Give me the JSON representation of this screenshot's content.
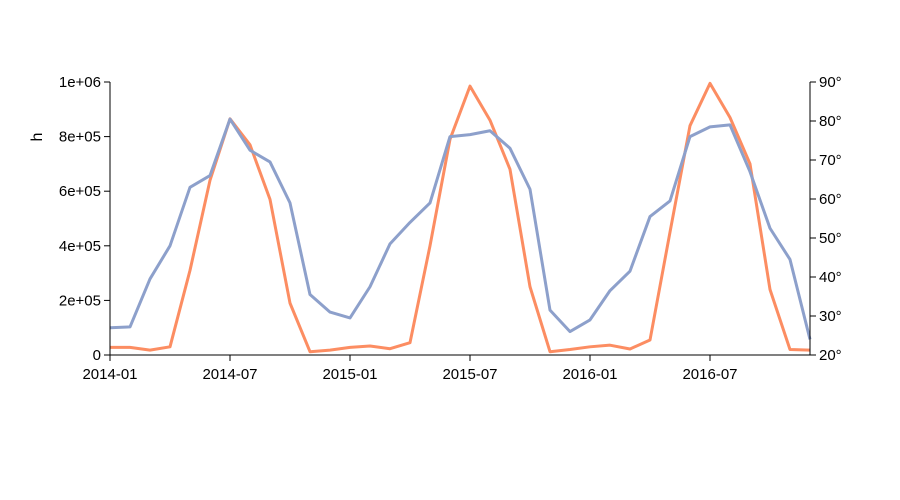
{
  "chart_data": {
    "type": "line",
    "ylabel_left": "h",
    "x": [
      "2014-01",
      "2014-02",
      "2014-03",
      "2014-04",
      "2014-05",
      "2014-06",
      "2014-07",
      "2014-08",
      "2014-09",
      "2014-10",
      "2014-11",
      "2014-12",
      "2015-01",
      "2015-02",
      "2015-03",
      "2015-04",
      "2015-05",
      "2015-06",
      "2015-07",
      "2015-08",
      "2015-09",
      "2015-10",
      "2015-11",
      "2015-12",
      "2016-01",
      "2016-02",
      "2016-03",
      "2016-04",
      "2016-05",
      "2016-06",
      "2016-07",
      "2016-08",
      "2016-09",
      "2016-10",
      "2016-11",
      "2016-12"
    ],
    "x_ticks": [
      "2014-01",
      "2014-07",
      "2015-01",
      "2015-07",
      "2016-01",
      "2016-07"
    ],
    "left_axis": {
      "ylim": [
        0,
        1000000
      ],
      "ticks": [
        {
          "value": 0,
          "label": "0"
        },
        {
          "value": 200000,
          "label": "2e+05"
        },
        {
          "value": 400000,
          "label": "4e+05"
        },
        {
          "value": 600000,
          "label": "6e+05"
        },
        {
          "value": 800000,
          "label": "8e+05"
        },
        {
          "value": 1000000,
          "label": "1e+06"
        }
      ]
    },
    "right_axis": {
      "ylim": [
        20,
        90
      ],
      "ticks": [
        {
          "value": 20,
          "label": "20°"
        },
        {
          "value": 30,
          "label": "30°"
        },
        {
          "value": 40,
          "label": "40°"
        },
        {
          "value": 50,
          "label": "50°"
        },
        {
          "value": 60,
          "label": "60°"
        },
        {
          "value": 70,
          "label": "70°"
        },
        {
          "value": 80,
          "label": "80°"
        },
        {
          "value": 90,
          "label": "90°"
        }
      ]
    },
    "series": [
      {
        "axis": "left",
        "color": "#fc8d62",
        "values": [
          28000,
          28000,
          18000,
          30000,
          310000,
          640000,
          865000,
          770000,
          570000,
          190000,
          12000,
          18000,
          28000,
          33000,
          23000,
          45000,
          400000,
          790000,
          985000,
          860000,
          680000,
          250000,
          12000,
          20000,
          30000,
          36000,
          22000,
          55000,
          450000,
          840000,
          995000,
          870000,
          700000,
          240000,
          20000,
          18000
        ]
      },
      {
        "axis": "right",
        "color": "#8da0cb",
        "values": [
          27,
          27.2,
          39.5,
          48,
          63,
          66,
          80.5,
          72.5,
          69.5,
          59,
          35.5,
          31,
          29.5,
          37.5,
          48.5,
          54,
          59,
          76,
          76.5,
          77.5,
          73,
          62.5,
          31.5,
          26,
          29,
          36.5,
          41.5,
          55.5,
          59.5,
          76,
          78.5,
          79,
          67,
          52.5,
          44.5,
          24
        ]
      }
    ]
  }
}
